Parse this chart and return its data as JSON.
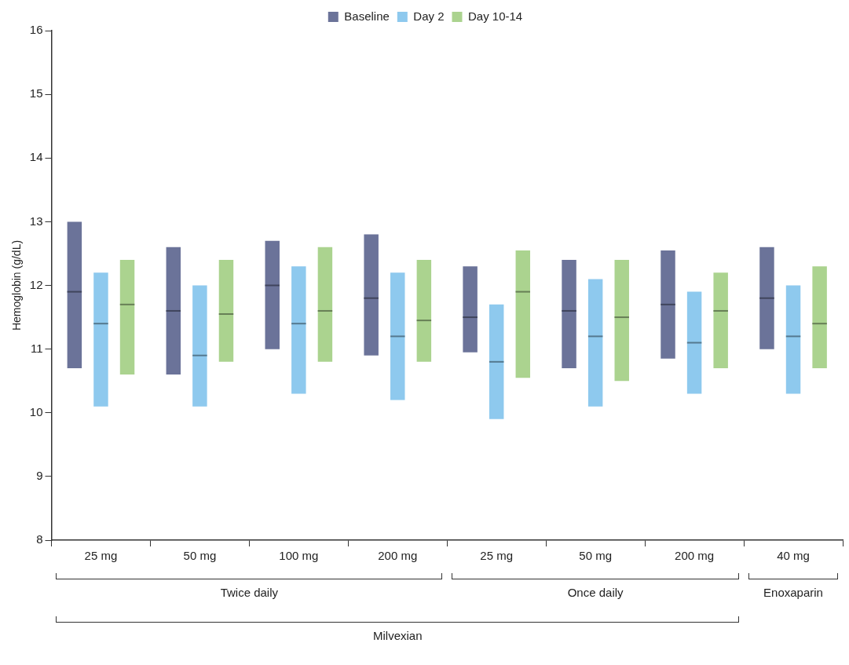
{
  "chart_data": {
    "type": "box",
    "ylabel": "Hemoglobin (g/dL)",
    "categories": [
      "25 mg",
      "50 mg",
      "100 mg",
      "200 mg",
      "25 mg",
      "50 mg",
      "200 mg",
      "40 mg"
    ],
    "ylim": [
      8,
      16
    ],
    "yticks": [
      8,
      9,
      10,
      11,
      12,
      13,
      14,
      15,
      16
    ],
    "grid": false,
    "legend": "top",
    "annotations": [
      "Twice daily",
      "Once daily",
      "Enoxaparin",
      "Milvexian"
    ],
    "series": [
      {
        "name": "Baseline",
        "color": "#6b7399",
        "boxes": [
          {
            "low": 10.7,
            "q1": 10.7,
            "median": 11.9,
            "q3": 13.0,
            "high": 13.0
          },
          {
            "low": 10.6,
            "q1": 10.6,
            "median": 11.6,
            "q3": 12.6,
            "high": 12.6
          },
          {
            "low": 11.0,
            "q1": 11.0,
            "median": 12.0,
            "q3": 12.7,
            "high": 12.7
          },
          {
            "low": 10.9,
            "q1": 10.9,
            "median": 11.8,
            "q3": 12.8,
            "high": 12.8
          },
          {
            "low": 10.95,
            "q1": 10.95,
            "median": 11.5,
            "q3": 12.3,
            "high": 12.3
          },
          {
            "low": 10.7,
            "q1": 10.7,
            "median": 11.6,
            "q3": 12.4,
            "high": 12.4
          },
          {
            "low": 10.85,
            "q1": 10.85,
            "median": 11.7,
            "q3": 12.55,
            "high": 12.55
          },
          {
            "low": 11.0,
            "q1": 11.0,
            "median": 11.8,
            "q3": 12.6,
            "high": 12.6
          }
        ]
      },
      {
        "name": "Day 2",
        "color": "#8ec9ee",
        "boxes": [
          {
            "low": 10.1,
            "q1": 10.1,
            "median": 11.4,
            "q3": 12.2,
            "high": 12.2
          },
          {
            "low": 10.1,
            "q1": 10.1,
            "median": 10.9,
            "q3": 12.0,
            "high": 12.0
          },
          {
            "low": 10.3,
            "q1": 10.3,
            "median": 11.4,
            "q3": 12.3,
            "high": 12.3
          },
          {
            "low": 10.2,
            "q1": 10.2,
            "median": 11.2,
            "q3": 12.2,
            "high": 12.2
          },
          {
            "low": 9.9,
            "q1": 9.9,
            "median": 10.8,
            "q3": 11.7,
            "high": 11.7
          },
          {
            "low": 10.1,
            "q1": 10.1,
            "median": 11.2,
            "q3": 12.1,
            "high": 12.1
          },
          {
            "low": 10.3,
            "q1": 10.3,
            "median": 11.1,
            "q3": 11.9,
            "high": 11.9
          },
          {
            "low": 10.3,
            "q1": 10.3,
            "median": 11.2,
            "q3": 12.0,
            "high": 12.0
          }
        ]
      },
      {
        "name": "Day 10-14",
        "color": "#abd38f",
        "boxes": [
          {
            "low": 10.6,
            "q1": 10.6,
            "median": 11.7,
            "q3": 12.4,
            "high": 12.4
          },
          {
            "low": 10.8,
            "q1": 10.8,
            "median": 11.55,
            "q3": 12.4,
            "high": 12.4
          },
          {
            "low": 10.8,
            "q1": 10.8,
            "median": 11.6,
            "q3": 12.6,
            "high": 12.6
          },
          {
            "low": 10.8,
            "q1": 10.8,
            "median": 11.45,
            "q3": 12.4,
            "high": 12.4
          },
          {
            "low": 10.55,
            "q1": 10.55,
            "median": 11.9,
            "q3": 12.55,
            "high": 12.55
          },
          {
            "low": 10.5,
            "q1": 10.5,
            "median": 11.5,
            "q3": 12.4,
            "high": 12.4
          },
          {
            "low": 10.7,
            "q1": 10.7,
            "median": 11.6,
            "q3": 12.2,
            "high": 12.2
          },
          {
            "low": 10.7,
            "q1": 10.7,
            "median": 11.4,
            "q3": 12.3,
            "high": 12.3
          }
        ]
      }
    ]
  }
}
